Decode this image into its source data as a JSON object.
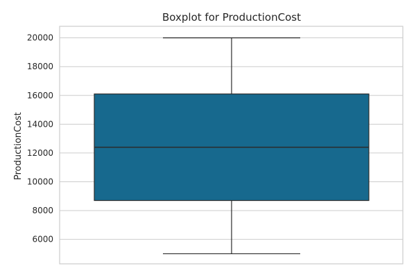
{
  "chart_data": {
    "type": "box",
    "title": "Boxplot for ProductionCost",
    "xlabel": "",
    "ylabel": "ProductionCost",
    "ylim": [
      4300,
      20800
    ],
    "yticks": [
      6000,
      8000,
      10000,
      12000,
      14000,
      16000,
      18000,
      20000
    ],
    "grid": true,
    "box_color": "#17698E",
    "box": {
      "min": 5000,
      "q1": 8700,
      "median": 12400,
      "q3": 16100,
      "max": 20000
    }
  }
}
